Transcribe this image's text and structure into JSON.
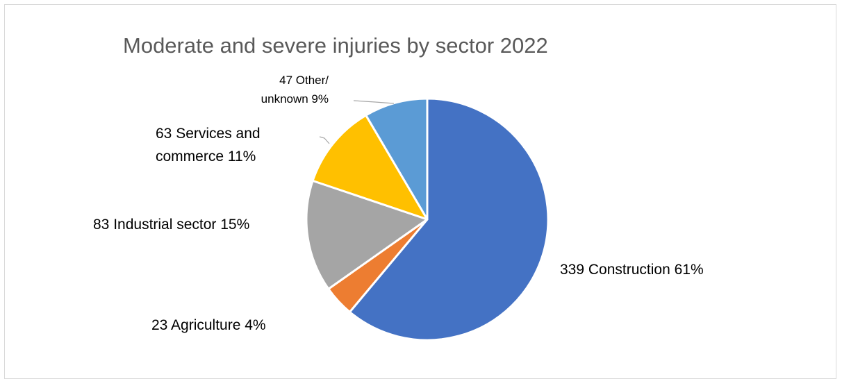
{
  "chart_data": {
    "type": "pie",
    "title": "Moderate and severe injuries by sector 2022",
    "slices": [
      {
        "label": "Construction",
        "value": 339,
        "percent": "61%",
        "color": "#4472C4",
        "label_lines": [
          "339 Construction 61%"
        ]
      },
      {
        "label": "Agriculture",
        "value": 23,
        "percent": "4%",
        "color": "#ED7D31",
        "label_lines": [
          "23 Agriculture 4%"
        ]
      },
      {
        "label": "Industrial sector",
        "value": 83,
        "percent": "15%",
        "color": "#A5A5A5",
        "label_lines": [
          "83 Industrial sector 15%"
        ]
      },
      {
        "label": "Services and commerce",
        "value": 63,
        "percent": "11%",
        "color": "#FFC000",
        "label_lines": [
          "63 Services and",
          "commerce 11%"
        ]
      },
      {
        "label": "Other/ unknown",
        "value": 47,
        "percent": "9%",
        "color": "#5B9BD5",
        "label_lines": [
          "47 Other/",
          "unknown 9%"
        ]
      }
    ],
    "start_angle_deg": 0,
    "direction": "clockwise"
  }
}
